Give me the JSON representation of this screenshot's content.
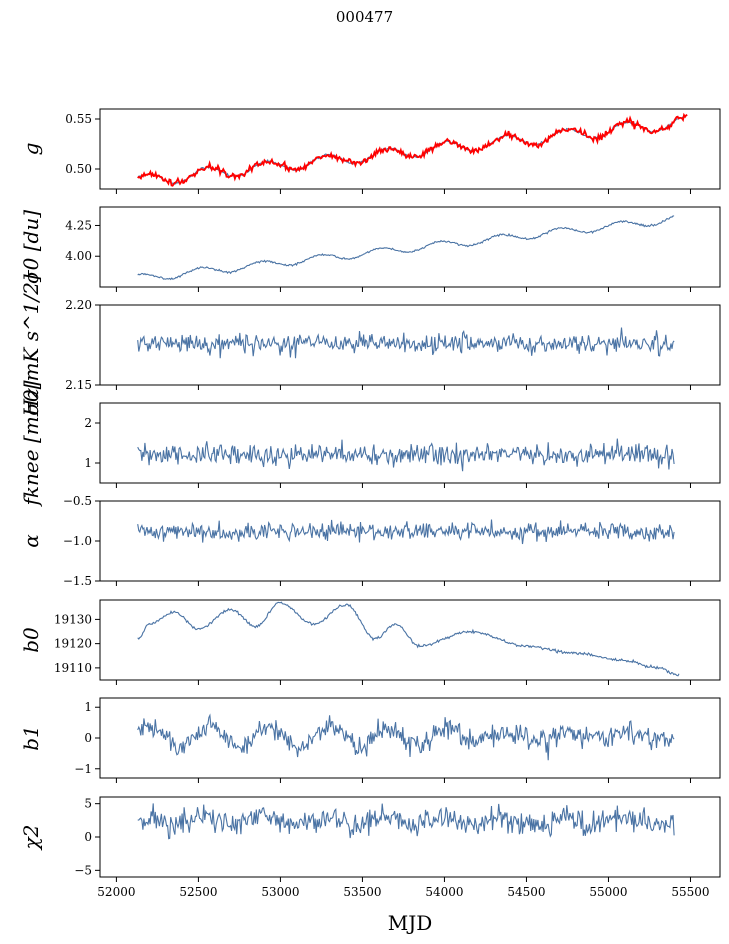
{
  "figure": {
    "title": "000477"
  },
  "chart_data": {
    "type": "line",
    "title": "000477",
    "xlabel": "MJD",
    "xlim": [
      51900,
      55680
    ],
    "xticks": [
      52000,
      52500,
      53000,
      53500,
      54000,
      54500,
      55000,
      55500
    ],
    "xtick_labels": [
      "52000",
      "52500",
      "53000",
      "53500",
      "54000",
      "54500",
      "55000",
      "55500"
    ],
    "x_start": 52130,
    "panels": [
      {
        "key": "g",
        "ylabel": "g",
        "ylim": [
          0.48,
          0.56
        ],
        "yticks": [
          0.5,
          0.55
        ],
        "ytick_labels": [
          "0.50",
          "0.55"
        ],
        "x_end": 55480,
        "model": {
          "type": "trend_sine",
          "start": 0.488,
          "end": 0.547,
          "amp": 0.006,
          "period": 365,
          "phase": 0.6,
          "noise": 0.0006,
          "seed": 11
        },
        "overlay": {
          "name": "g (red)",
          "color": "#ff0000",
          "noise": 0.0015,
          "seed": 99
        },
        "color": "#4a73a4"
      },
      {
        "key": "sigma0_du",
        "ylabel": "σ0 [du]",
        "ylim": [
          3.75,
          4.4
        ],
        "yticks": [
          4.0,
          4.25
        ],
        "ytick_labels": [
          "4.00",
          "4.25"
        ],
        "x_end": 55400,
        "model": {
          "type": "trend_sine",
          "start": 3.82,
          "end": 4.3,
          "amp": 0.03,
          "period": 365,
          "phase": 1.2,
          "noise": 0.004,
          "seed": 5
        },
        "color": "#4a73a4"
      },
      {
        "key": "sigma0_mk",
        "ylabel": "σ0[mK s^1/2]",
        "ylim": [
          2.15,
          2.2
        ],
        "yticks": [
          2.15,
          2.2
        ],
        "ytick_labels": [
          "2.15",
          "2.20"
        ],
        "x_end": 55400,
        "model": {
          "type": "noise",
          "mean": 2.176,
          "noise": 0.003,
          "seed": 21
        },
        "color": "#4a73a4"
      },
      {
        "key": "fknee",
        "ylabel": "fknee [mHz]",
        "ylim": [
          0.5,
          2.5
        ],
        "yticks": [
          1,
          2
        ],
        "ytick_labels": [
          "1",
          "2"
        ],
        "x_end": 55400,
        "model": {
          "type": "noise",
          "mean": 1.2,
          "noise": 0.14,
          "seed": 31
        },
        "color": "#4a73a4"
      },
      {
        "key": "alpha",
        "ylabel": "α",
        "ylim": [
          -1.5,
          -0.5
        ],
        "yticks": [
          -1.5,
          -1.0,
          -0.5
        ],
        "ytick_labels": [
          "−1.5",
          "−1.0",
          "−0.5"
        ],
        "x_end": 55400,
        "model": {
          "type": "noise",
          "mean": -0.88,
          "noise": 0.055,
          "seed": 41
        },
        "color": "#4a73a4"
      },
      {
        "key": "b0",
        "ylabel": "b0",
        "ylim": [
          19105,
          19138
        ],
        "yticks": [
          19110,
          19120,
          19130
        ],
        "ytick_labels": [
          "19110",
          "19120",
          "19130"
        ],
        "x_end": 55430,
        "model": {
          "type": "piecewise",
          "points": [
            [
              52130,
              19122
            ],
            [
              52200,
              19128
            ],
            [
              52350,
              19133
            ],
            [
              52500,
              19126
            ],
            [
              52700,
              19134
            ],
            [
              52850,
              19127
            ],
            [
              53000,
              19137
            ],
            [
              53200,
              19128
            ],
            [
              53400,
              19136
            ],
            [
              53580,
              19122
            ],
            [
              53700,
              19128
            ],
            [
              53850,
              19119
            ],
            [
              54150,
              19125
            ],
            [
              54500,
              19119
            ],
            [
              54800,
              19116
            ],
            [
              55100,
              19113
            ],
            [
              55300,
              19110
            ],
            [
              55430,
              19107
            ]
          ],
          "noise": 0.3,
          "seed": 51
        },
        "color": "#4a73a4"
      },
      {
        "key": "b1",
        "ylabel": "b1",
        "ylim": [
          -1.3,
          1.3
        ],
        "yticks": [
          -1,
          0,
          1
        ],
        "ytick_labels": [
          "−1",
          "0",
          "1"
        ],
        "x_end": 55400,
        "model": {
          "type": "noise_sine",
          "mean": 0.05,
          "amp": 0.35,
          "period": 365,
          "phase": 0.3,
          "noise": 0.18,
          "damp_after": 54100,
          "seed": 61
        },
        "color": "#4a73a4"
      },
      {
        "key": "chi2",
        "ylabel": "χ2",
        "ylim": [
          -6,
          6
        ],
        "yticks": [
          -5,
          0,
          5
        ],
        "ytick_labels": [
          "−5",
          "0",
          "5"
        ],
        "x_end": 55400,
        "model": {
          "type": "noise_sine",
          "mean": 2.4,
          "amp": 0.6,
          "period": 365,
          "phase": 0.9,
          "noise": 1.0,
          "seed": 71
        },
        "color": "#4a73a4"
      }
    ]
  }
}
